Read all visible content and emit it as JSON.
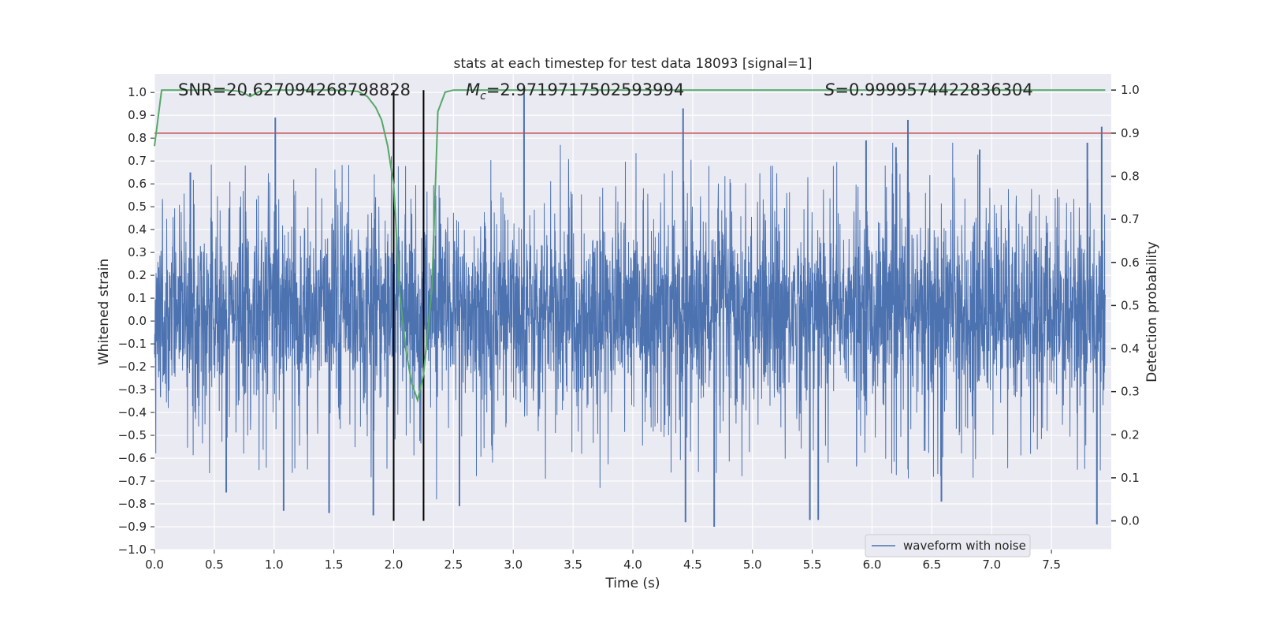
{
  "chart_data": {
    "type": "line",
    "title": "stats at each timestep for test data 18093 [signal=1]",
    "xlabel": "Time (s)",
    "ylabel": "Whitened strain",
    "y2label": "Detection probability",
    "xlim": [
      0.0,
      8.0
    ],
    "ylim": [
      -1.0,
      1.08
    ],
    "y2lim": [
      -0.0667,
      1.037
    ],
    "x_ticks": [
      0.0,
      0.5,
      1.0,
      1.5,
      2.0,
      2.5,
      3.0,
      3.5,
      4.0,
      4.5,
      5.0,
      5.5,
      6.0,
      6.5,
      7.0,
      7.5
    ],
    "x_tick_labels": [
      "0.0",
      "0.5",
      "1.0",
      "1.5",
      "2.0",
      "2.5",
      "3.0",
      "3.5",
      "4.0",
      "4.5",
      "5.0",
      "5.5",
      "6.0",
      "6.5",
      "7.0",
      "7.5"
    ],
    "y_ticks": [
      -1.0,
      -0.9,
      -0.8,
      -0.7,
      -0.6,
      -0.5,
      -0.4,
      -0.3,
      -0.2,
      -0.1,
      0.0,
      0.1,
      0.2,
      0.3,
      0.4,
      0.5,
      0.6,
      0.7,
      0.8,
      0.9,
      1.0
    ],
    "y_tick_labels": [
      "−1.0",
      "−0.9",
      "−0.8",
      "−0.7",
      "−0.6",
      "−0.5",
      "−0.4",
      "−0.3",
      "−0.2",
      "−0.1",
      "0.0",
      "0.1",
      "0.2",
      "0.3",
      "0.4",
      "0.5",
      "0.6",
      "0.7",
      "0.8",
      "0.9",
      "1.0"
    ],
    "y2_ticks": [
      0.0,
      0.1,
      0.2,
      0.3,
      0.4,
      0.5,
      0.6,
      0.7,
      0.8,
      0.9,
      1.0
    ],
    "y2_tick_labels": [
      "0.0",
      "0.1",
      "0.2",
      "0.3",
      "0.4",
      "0.5",
      "0.6",
      "0.7",
      "0.8",
      "0.9",
      "1.0"
    ],
    "grid": true,
    "background": "#eaeaf2",
    "annotations": {
      "snr": "SNR=20.627094268798828",
      "mc_symbol": "M",
      "mc_subscript": "c",
      "mc_value": "=2.9719717502593994",
      "s_symbol": "S",
      "s_value": "=0.9999574422836304"
    },
    "legend": {
      "label": "waveform with noise",
      "position": "lower-right"
    },
    "series": [
      {
        "name": "waveform with noise",
        "axis": "left",
        "color": "#4c72b0",
        "kind": "noise",
        "time_range": [
          0.0,
          7.95
        ],
        "typical_range": [
          -0.33,
          0.42
        ],
        "notable_peaks": [
          {
            "x": 1.01,
            "y": 0.89
          },
          {
            "x": 3.09,
            "y": 1.0
          },
          {
            "x": 4.42,
            "y": 0.93
          },
          {
            "x": 6.3,
            "y": 0.88
          },
          {
            "x": 7.92,
            "y": 0.85
          },
          {
            "x": 5.95,
            "y": 0.79
          },
          {
            "x": 7.8,
            "y": 0.78
          },
          {
            "x": 6.2,
            "y": 0.76
          },
          {
            "x": 6.9,
            "y": 0.75
          },
          {
            "x": 0.3,
            "y": 0.65
          },
          {
            "x": 2.25,
            "y": 0.7
          }
        ],
        "notable_troughs": [
          {
            "x": 4.44,
            "y": -0.88
          },
          {
            "x": 4.68,
            "y": -0.9
          },
          {
            "x": 7.88,
            "y": -0.89
          },
          {
            "x": 1.46,
            "y": -0.84
          },
          {
            "x": 1.83,
            "y": -0.85
          },
          {
            "x": 1.08,
            "y": -0.83
          },
          {
            "x": 5.48,
            "y": -0.87
          },
          {
            "x": 5.55,
            "y": -0.87
          },
          {
            "x": 0.6,
            "y": -0.75
          },
          {
            "x": 2.55,
            "y": -0.81
          },
          {
            "x": 6.58,
            "y": -0.79
          }
        ]
      },
      {
        "axis": "right",
        "color": "#55a868",
        "kind": "line",
        "x": [
          0.0,
          0.06,
          0.12,
          0.3,
          0.6,
          0.72,
          0.8,
          0.88,
          1.0,
          1.5,
          1.7,
          1.78,
          1.85,
          1.9,
          1.95,
          2.0,
          2.05,
          2.1,
          2.15,
          2.2,
          2.25,
          2.32,
          2.37,
          2.43,
          2.5,
          3.0,
          5.0,
          7.95
        ],
        "y": [
          0.87,
          1.0,
          1.0,
          1.0,
          1.0,
          0.997,
          0.985,
          0.997,
          1.0,
          1.0,
          0.997,
          0.985,
          0.96,
          0.93,
          0.87,
          0.78,
          0.53,
          0.4,
          0.32,
          0.28,
          0.34,
          0.54,
          0.95,
          0.995,
          1.0,
          1.0,
          1.0,
          1.0
        ]
      }
    ],
    "threshold": {
      "axis": "right",
      "y": 0.9,
      "color": "#c44e52"
    },
    "vertical_lines": [
      {
        "x": 2.0,
        "color": "#000000"
      },
      {
        "x": 2.25,
        "color": "#000000"
      }
    ]
  }
}
